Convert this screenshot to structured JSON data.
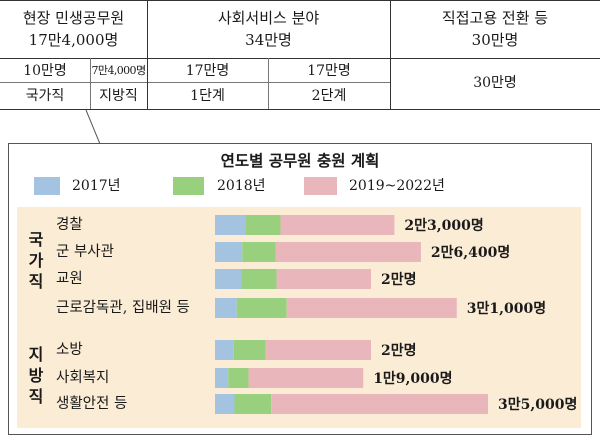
{
  "table": {
    "header": [
      {
        "title": "현장 민생공무원",
        "sub": "17만4,000명"
      },
      {
        "title": "사회서비스 분야",
        "sub": "34만명"
      },
      {
        "title": "직접고용 전환 등",
        "sub": "30만명"
      }
    ],
    "row2": [
      "10만명",
      "7만4,000명",
      "17만명",
      "17만명",
      "30만명"
    ],
    "row3": [
      "국가직",
      "지방직",
      "1단계",
      "2단계"
    ]
  },
  "colors": {
    "2017": "#a3c3e1",
    "2018": "#99d07d",
    "2019-2022": "#e9b7bb",
    "background": "#fbecd5"
  },
  "chart_data": {
    "type": "bar",
    "stacked": true,
    "orientation": "horizontal",
    "title": "연도별 공무원 충원 계획",
    "legend": [
      "2017년",
      "2018년",
      "2019~2022년"
    ],
    "group_labels": {
      "national": "국가직",
      "local": "지방직"
    },
    "categories": [
      "경찰",
      "군 부사관",
      "교원",
      "근로감독관, 집배원 등",
      "소방",
      "사회복지",
      "생활안전 등"
    ],
    "groups": [
      "national",
      "national",
      "national",
      "national",
      "local",
      "local",
      "local"
    ],
    "totals": [
      23000,
      26400,
      20000,
      31000,
      20000,
      19000,
      35000
    ],
    "total_labels": [
      "2만3,000명",
      "2만6,400명",
      "2만명",
      "3만1,000명",
      "2만명",
      "1만9,000명",
      "3만5,000명"
    ],
    "series": [
      {
        "name": "2017년",
        "values": [
          3900,
          3500,
          3400,
          2800,
          2400,
          1700,
          2500
        ]
      },
      {
        "name": "2018년",
        "values": [
          4500,
          4300,
          4500,
          6400,
          4100,
          2600,
          4700
        ]
      },
      {
        "name": "2019~2022년",
        "values": [
          14600,
          18600,
          12100,
          21800,
          13500,
          14700,
          27800
        ]
      }
    ]
  }
}
